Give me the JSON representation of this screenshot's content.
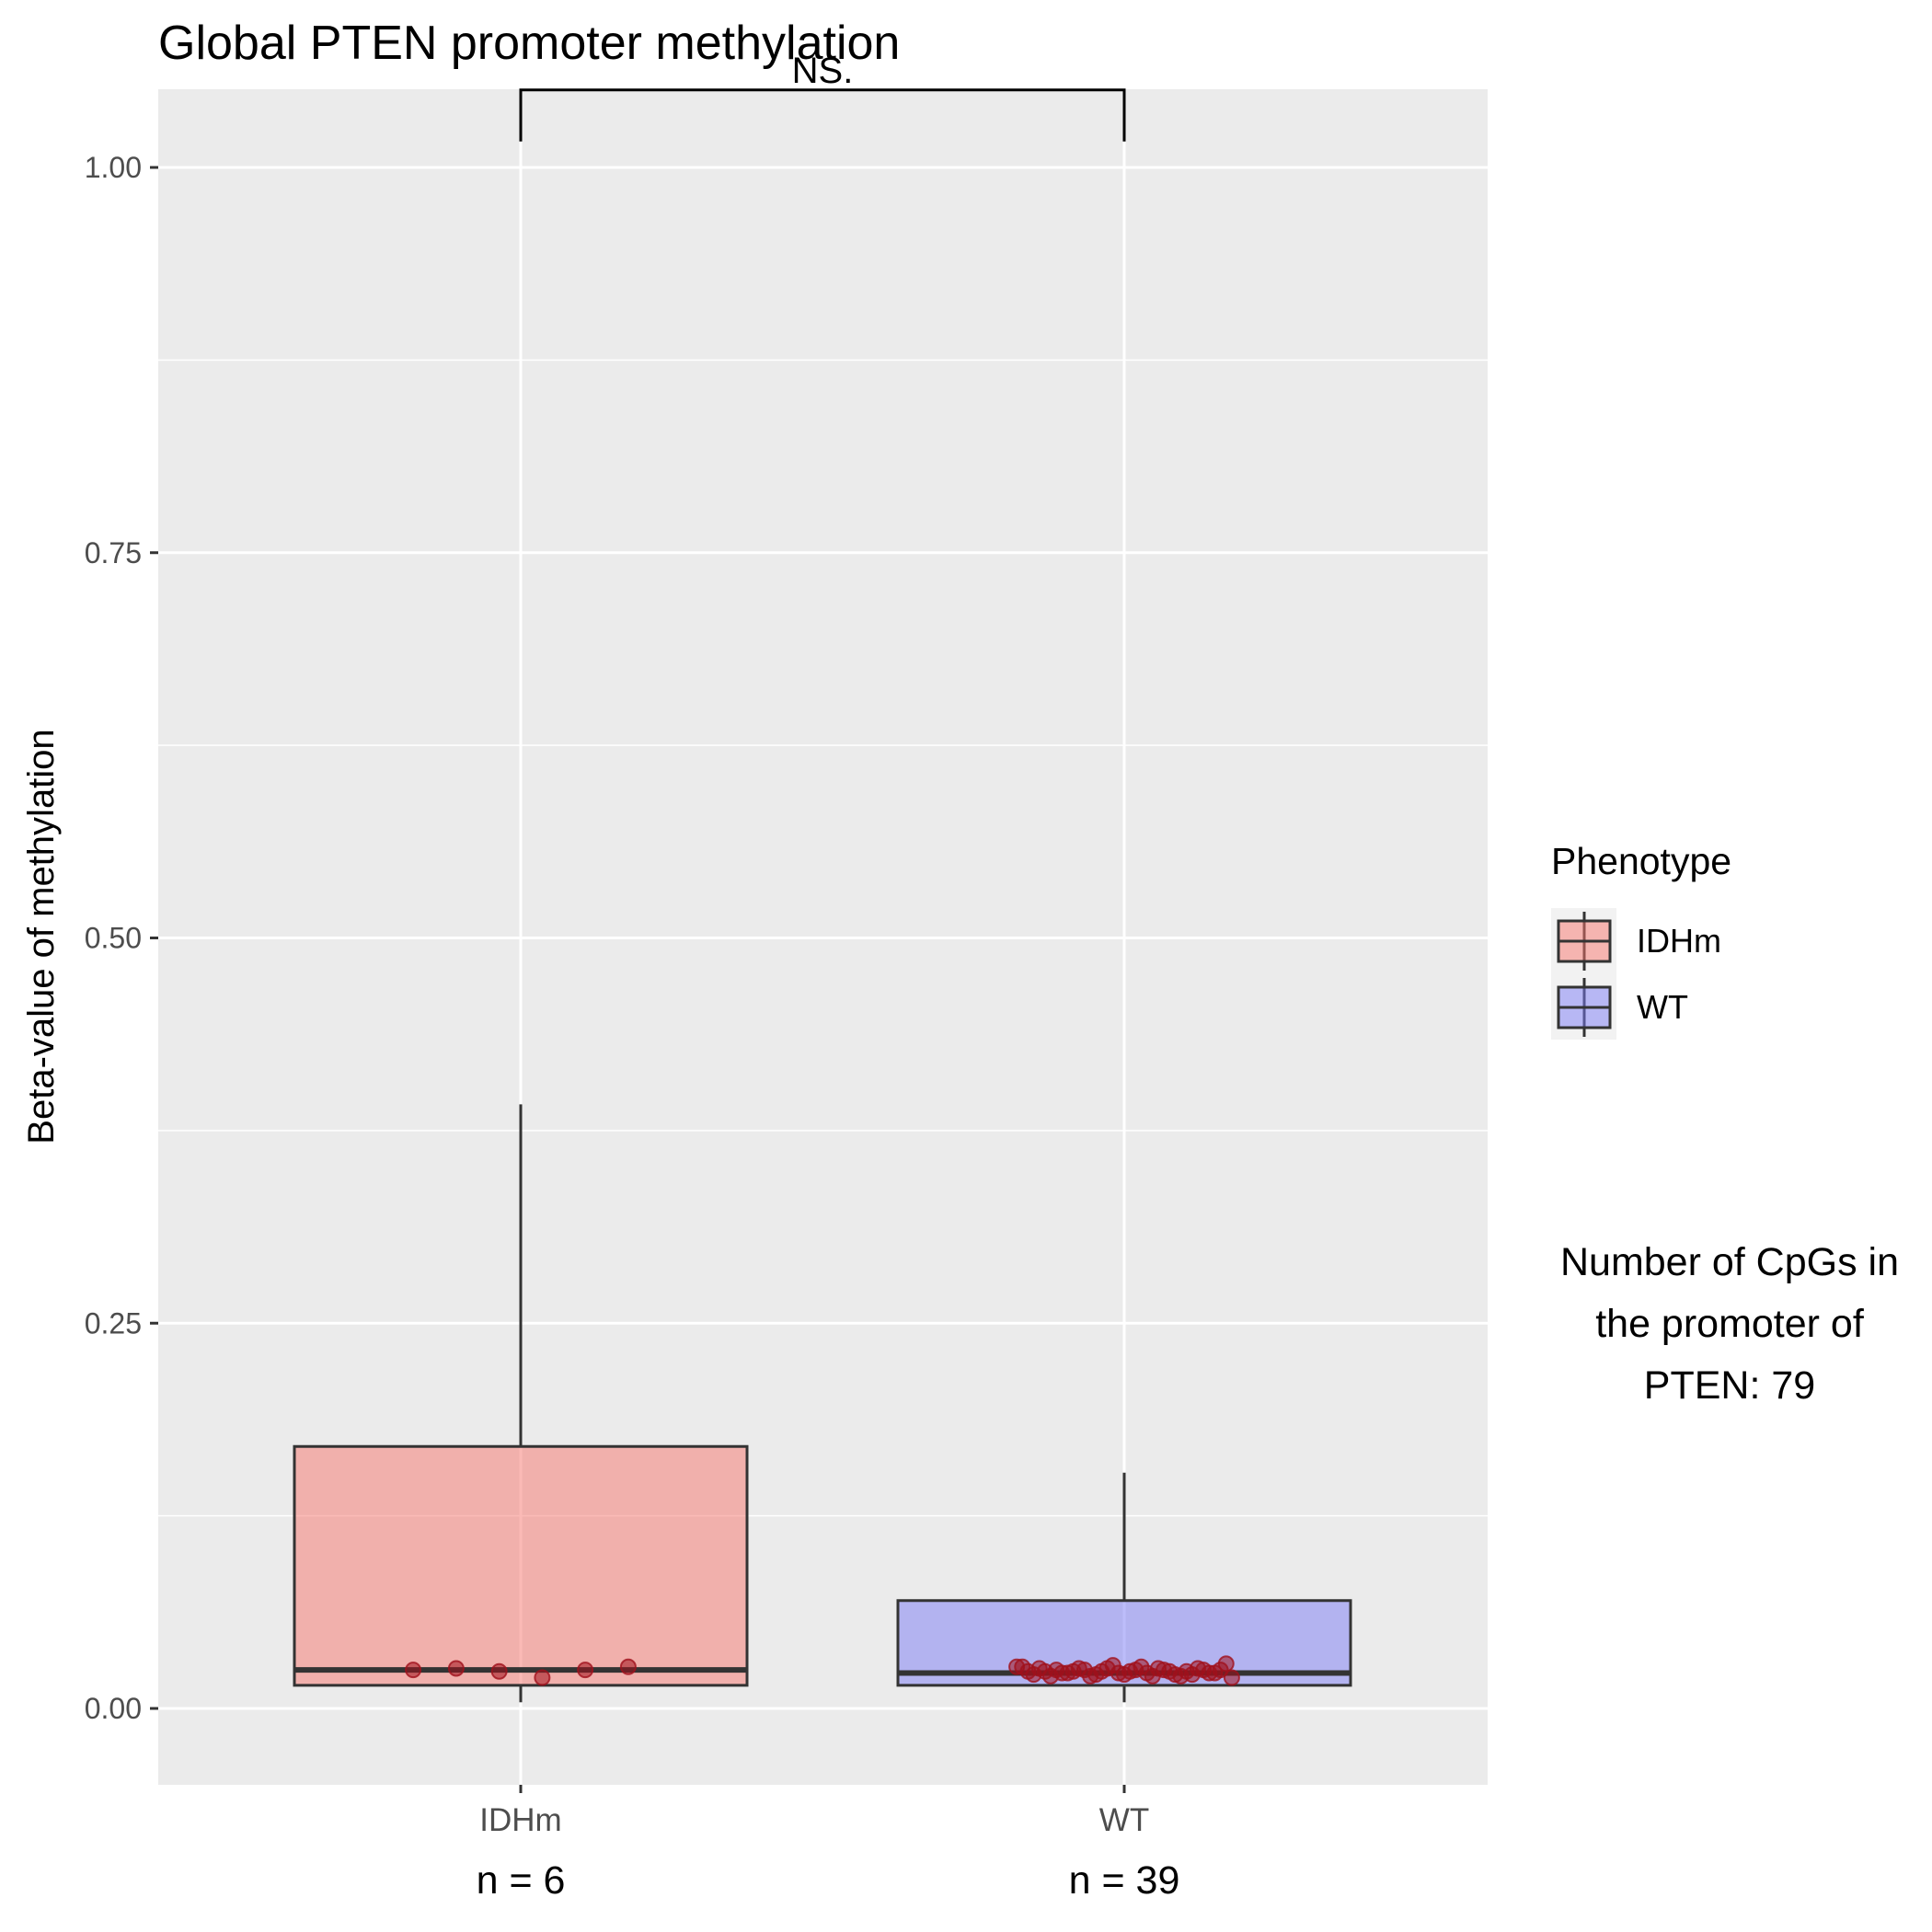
{
  "chart_data": {
    "type": "boxplot",
    "title": "Global PTEN promoter methylation",
    "ylabel": "Beta-value of methylation",
    "xlabel": "",
    "ylim": [
      -0.05,
      1.05
    ],
    "yticks": [
      0,
      0.25,
      0.5,
      0.75,
      1.0
    ],
    "ytick_labels": [
      "0.00",
      "0.25",
      "0.50",
      "0.75",
      "1.00"
    ],
    "grid": true,
    "legend": {
      "title": "Phenotype",
      "position": "right",
      "entries": [
        {
          "label": "IDHm",
          "color": "#F8766D"
        },
        {
          "label": "WT",
          "color": "#7B7BF5"
        }
      ]
    },
    "categories": [
      "IDHm",
      "WT"
    ],
    "n_labels": [
      "n = 6",
      "n = 39"
    ],
    "boxes": [
      {
        "name": "IDHm",
        "color": "#F8766D",
        "min": 0.004,
        "q1": 0.015,
        "median": 0.025,
        "q3": 0.17,
        "max": 0.392
      },
      {
        "name": "WT",
        "color": "#7B7BF5",
        "min": 0.004,
        "q1": 0.015,
        "median": 0.023,
        "q3": 0.07,
        "max": 0.153
      }
    ],
    "points": [
      {
        "group": "IDHm",
        "values": [
          0.025,
          0.026,
          0.024,
          0.02,
          0.025,
          0.027
        ]
      },
      {
        "group": "WT",
        "values": [
          0.027,
          0.029,
          0.023,
          0.025,
          0.022,
          0.021,
          0.024,
          0.026,
          0.023,
          0.025,
          0.022,
          0.028,
          0.024,
          0.021,
          0.026,
          0.023,
          0.025,
          0.024,
          0.022,
          0.027,
          0.02,
          0.025,
          0.023,
          0.026,
          0.024,
          0.022,
          0.025,
          0.021,
          0.027,
          0.024,
          0.023,
          0.026,
          0.022,
          0.025,
          0.024,
          0.023,
          0.021,
          0.026,
          0.024
        ]
      }
    ],
    "significance": {
      "label": "NS.",
      "from": "IDHm",
      "to": "WT",
      "y": 1.05
    },
    "annotation": [
      "Number of CpGs in",
      "the promoter of",
      "PTEN: 79"
    ],
    "colors": {
      "panel_bg": "#EBEBEB",
      "grid": "#FFFFFF",
      "outline": "#333333",
      "point": "#A0101B"
    }
  }
}
